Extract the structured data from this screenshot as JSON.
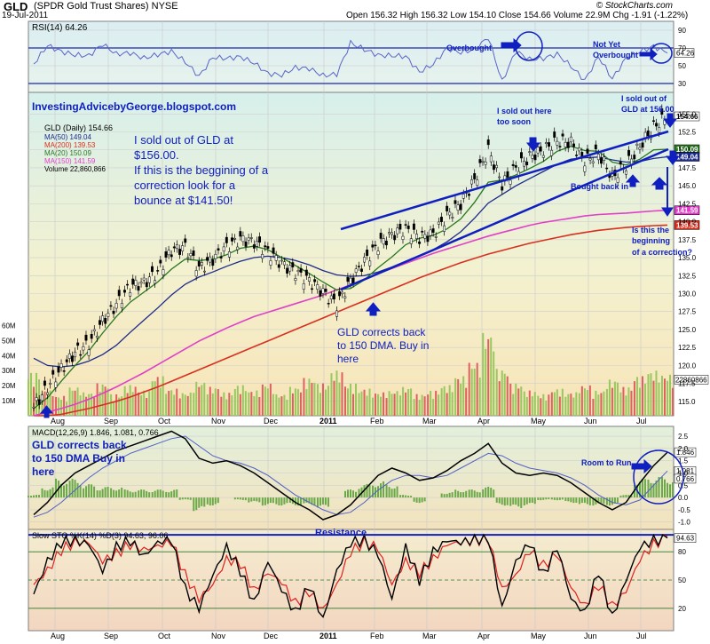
{
  "header": {
    "symbol": "GLD",
    "name": "(SPDR Gold Trust Shares) NYSE",
    "date": "19-Jul-2011",
    "ohlc": "Open 156.32  High 156.32  Low 154.10  Close 154.66  Volume 22.9M  Chg -1.91 (-1.22%)",
    "brand": "© StockCharts.com"
  },
  "chart_data": [
    {
      "type": "line",
      "panel": "rsi",
      "title": "RSI(14) 64.26",
      "y_ticks": [
        30,
        50,
        70,
        90
      ],
      "ylim": [
        20,
        100
      ],
      "last_value_label": "64.26",
      "overbought": 70,
      "oversold": 30,
      "annotations": [
        "Overbought",
        "Not Yet Overbought"
      ],
      "colors": {
        "line": "#5a64c8",
        "fill": "#7aa7d8",
        "level": "#1c28a8"
      }
    },
    {
      "type": "line",
      "panel": "price",
      "title": "GLD (Daily) 154.66",
      "legend": [
        {
          "label": "MA(50) 149.04",
          "color": "#1c2a8c"
        },
        {
          "label": "MA(200) 139.53",
          "color": "#d83020"
        },
        {
          "label": "MA(20) 150.09",
          "color": "#287820"
        },
        {
          "label": "MA(150) 141.59",
          "color": "#e040c8"
        },
        {
          "label": "Volume 22,860,866",
          "color": "#98c860"
        }
      ],
      "x_labels": [
        "Aug",
        "Sep",
        "Oct",
        "Nov",
        "Dec",
        "2011",
        "Feb",
        "Mar",
        "Apr",
        "May",
        "Jun",
        "Jul"
      ],
      "y_ticks": [
        115,
        117.5,
        120,
        122.5,
        125,
        127.5,
        130,
        132.5,
        135,
        137.5,
        140,
        142.5,
        145,
        147.5,
        150,
        152.5,
        155
      ],
      "ylim": [
        113,
        158
      ],
      "volume_ticks": [
        "10M",
        "20M",
        "30M",
        "40M",
        "50M",
        "60M"
      ],
      "right_labels": [
        "154.66",
        "150.09",
        "149.04",
        "141.59",
        "139.53",
        "22860866"
      ],
      "close": [
        114.2,
        117.0,
        119.5,
        121.8,
        123.0,
        126.2,
        128.5,
        131.0,
        131.5,
        133.0,
        136.0,
        136.5,
        133.5,
        134.8,
        136.5,
        137.6,
        137.2,
        135.8,
        134.2,
        133.0,
        131.8,
        130.2,
        128.5,
        131.8,
        134.5,
        136.8,
        138.2,
        139.0,
        137.8,
        138.3,
        140.8,
        142.5,
        145.8,
        150.0,
        145.2,
        147.5,
        149.0,
        150.0,
        151.2,
        151.0,
        148.5,
        149.5,
        146.2,
        147.8,
        150.5,
        153.2,
        154.66
      ],
      "ma20": [
        114.0,
        115.5,
        117.8,
        120.0,
        122.0,
        124.5,
        126.8,
        128.8,
        130.2,
        131.6,
        133.4,
        134.8,
        134.6,
        134.8,
        135.4,
        136.3,
        136.6,
        136.1,
        135.0,
        133.9,
        132.8,
        131.6,
        130.5,
        130.7,
        131.9,
        133.6,
        135.1,
        136.8,
        137.7,
        138.1,
        139.0,
        140.4,
        142.7,
        145.5,
        145.8,
        146.5,
        147.4,
        148.4,
        149.8,
        150.5,
        149.9,
        149.8,
        148.3,
        147.9,
        148.7,
        150.0,
        150.09
      ],
      "ma50": [
        121.0,
        120.0,
        119.8,
        120.0,
        120.6,
        121.5,
        122.8,
        124.6,
        126.3,
        128.0,
        129.8,
        131.3,
        132.3,
        133.0,
        133.8,
        134.5,
        135.0,
        135.2,
        135.0,
        134.6,
        134.0,
        133.2,
        132.6,
        132.4,
        132.5,
        133.0,
        133.7,
        134.5,
        135.3,
        136.1,
        137.2,
        138.6,
        140.5,
        142.6,
        143.8,
        145.0,
        146.0,
        147.0,
        148.0,
        148.7,
        148.9,
        149.0,
        148.6,
        148.3,
        148.4,
        148.8,
        149.04
      ],
      "ma150": [
        113.0,
        113.5,
        114.0,
        114.6,
        115.3,
        116.1,
        117.0,
        118.0,
        119.0,
        120.1,
        121.2,
        122.3,
        123.4,
        124.3,
        125.2,
        126.0,
        126.8,
        127.4,
        128.0,
        128.6,
        129.2,
        129.8,
        130.5,
        131.2,
        132.0,
        132.8,
        133.5,
        134.2,
        134.9,
        135.6,
        136.2,
        136.8,
        137.4,
        138.0,
        138.5,
        139.0,
        139.5,
        139.9,
        140.2,
        140.5,
        140.8,
        141.0,
        141.1,
        141.2,
        141.35,
        141.5,
        141.59
      ],
      "ma200": [
        113.0,
        113.0,
        113.2,
        113.6,
        114.0,
        114.5,
        115.0,
        115.6,
        116.3,
        117.0,
        117.8,
        118.6,
        119.4,
        120.2,
        121.0,
        121.8,
        122.6,
        123.4,
        124.2,
        125.0,
        125.8,
        126.6,
        127.4,
        128.2,
        129.0,
        129.8,
        130.6,
        131.4,
        132.2,
        132.9,
        133.6,
        134.3,
        134.9,
        135.5,
        136.0,
        136.5,
        137.0,
        137.4,
        137.8,
        138.2,
        138.5,
        138.8,
        139.0,
        139.2,
        139.35,
        139.45,
        139.53
      ],
      "volume_m": [
        24,
        14,
        11,
        16,
        13,
        18,
        12,
        17,
        14,
        22,
        15,
        13,
        19,
        16,
        13,
        17,
        14,
        18,
        12,
        16,
        21,
        18,
        25,
        18,
        15,
        13,
        14,
        16,
        12,
        14,
        17,
        22,
        30,
        46,
        26,
        18,
        14,
        12,
        15,
        13,
        17,
        14,
        20,
        16,
        22,
        25,
        23
      ],
      "annotations": [
        "InvestingAdvicebyGeorge.blogspot.com",
        "I sold out of GLD at $156.00. If this is the beggining of a correction look for a bounce at $141.50!",
        "I sold out here too soon",
        "I sold out of GLD at 156.00",
        "Bought back in",
        "Is this the beginning of a correction?",
        "GLD corrects back to 150 DMA. Buy in here"
      ]
    },
    {
      "type": "line",
      "panel": "macd",
      "title": "MACD(12,26,9) 1.846, 1.081, 0.766",
      "y_ticks": [
        -1.0,
        -0.5,
        0.0,
        0.5,
        1.0,
        1.5,
        2.0,
        2.5
      ],
      "ylim": [
        -1.3,
        2.9
      ],
      "right_labels": [
        "1.846",
        "1.081",
        "0.766"
      ],
      "annotations": [
        "GLD corrects back to 150 DMA Buy in here",
        "Room to Run"
      ],
      "macd": [
        -0.7,
        -0.2,
        0.5,
        1.0,
        1.3,
        1.6,
        1.9,
        2.1,
        2.3,
        2.5,
        2.7,
        2.4,
        1.6,
        1.4,
        1.5,
        1.3,
        1.0,
        0.6,
        0.2,
        -0.2,
        -0.5,
        -0.9,
        -0.7,
        -0.3,
        0.3,
        0.9,
        1.2,
        1.0,
        0.7,
        0.8,
        1.1,
        1.5,
        1.8,
        2.2,
        1.4,
        1.0,
        0.9,
        1.0,
        0.9,
        0.6,
        0.2,
        -0.2,
        -0.5,
        -0.2,
        0.6,
        1.3,
        1.846
      ],
      "signal": [
        -0.8,
        -0.6,
        -0.2,
        0.3,
        0.8,
        1.2,
        1.5,
        1.8,
        2.0,
        2.2,
        2.4,
        2.5,
        2.1,
        1.7,
        1.5,
        1.4,
        1.2,
        0.9,
        0.5,
        0.1,
        -0.2,
        -0.5,
        -0.7,
        -0.6,
        -0.2,
        0.3,
        0.7,
        0.9,
        0.9,
        0.8,
        0.9,
        1.2,
        1.5,
        1.8,
        1.7,
        1.4,
        1.2,
        1.1,
        1.0,
        0.8,
        0.5,
        0.1,
        -0.2,
        -0.3,
        -0.1,
        0.5,
        1.081
      ]
    },
    {
      "type": "line",
      "panel": "stochastic",
      "title": "Slow STO %K(14) %D(3) 94.63, 96.06",
      "y_ticks": [
        20,
        50,
        80
      ],
      "ylim": [
        0,
        100
      ],
      "right_labels": [
        "94.63"
      ],
      "annotations": [
        "Resistance"
      ],
      "k": [
        35,
        70,
        90,
        92,
        88,
        60,
        85,
        92,
        75,
        90,
        93,
        40,
        20,
        55,
        85,
        60,
        25,
        70,
        40,
        15,
        45,
        8,
        60,
        90,
        92,
        78,
        30,
        85,
        50,
        80,
        92,
        90,
        93,
        95,
        20,
        70,
        90,
        55,
        85,
        30,
        15,
        60,
        10,
        50,
        85,
        92,
        94.63
      ],
      "d": [
        45,
        60,
        82,
        90,
        90,
        70,
        78,
        88,
        82,
        86,
        91,
        55,
        30,
        45,
        72,
        68,
        38,
        58,
        48,
        25,
        38,
        18,
        45,
        80,
        90,
        84,
        45,
        70,
        58,
        72,
        88,
        90,
        92,
        94,
        40,
        55,
        82,
        65,
        78,
        42,
        22,
        45,
        22,
        38,
        72,
        88,
        96.06
      ]
    }
  ]
}
